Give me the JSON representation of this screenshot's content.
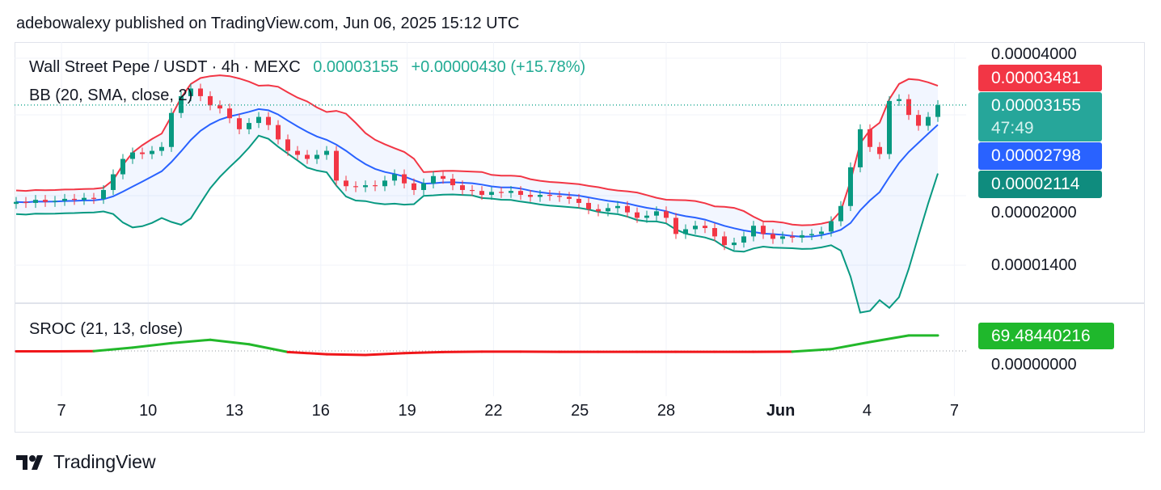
{
  "header": {
    "published": "adebowalexy published on TradingView.com, Jun 06, 2025 15:12 UTC"
  },
  "legend": {
    "symbol": "Wall Street Pepe / USDT · 4h · MEXC",
    "price": "0.00003155",
    "change": "+0.00000430 (+15.78%)",
    "bb": "BB (20, SMA, close, 2)",
    "sroc": "SROC (21, 13, close)"
  },
  "price_axis": {
    "top": "0.00004000",
    "mid": "0.00002000",
    "low": "0.00001400",
    "sroc_zero": "0.00000000"
  },
  "labels": {
    "bb_upper": "0.00003481",
    "last": "0.00003155",
    "countdown": "47:49",
    "bb_basis": "0.00002798",
    "bb_lower": "0.00002114",
    "sroc": "69.48440216"
  },
  "colors": {
    "up": "#089981",
    "down": "#f23645",
    "basis": "#2962ff",
    "sroc_up": "#22b82a",
    "sroc_down": "#f0161a"
  },
  "brand": "TradingView",
  "chart_data": {
    "type": "candlestick",
    "scale": "log",
    "ylim": [
      9.5e-06,
      4.25e-05
    ],
    "bb_period": 20,
    "time_ticks": [
      {
        "label": "7",
        "bar": 4.67
      },
      {
        "label": "10",
        "bar": 13.6
      },
      {
        "label": "13",
        "bar": 22.5
      },
      {
        "label": "16",
        "bar": 31.4
      },
      {
        "label": "19",
        "bar": 40.3
      },
      {
        "label": "22",
        "bar": 49.2
      },
      {
        "label": "25",
        "bar": 58.1
      },
      {
        "label": "28",
        "bar": 67
      },
      {
        "label": "Jun",
        "bar": 78.8
      },
      {
        "label": "4",
        "bar": 87.7
      },
      {
        "label": "7",
        "bar": 96.7
      }
    ],
    "close": [
      1.93e-05,
      1.92e-05,
      1.95e-05,
      1.93e-05,
      1.94e-05,
      1.96e-05,
      1.95e-05,
      1.97e-05,
      1.96e-05,
      2.05e-05,
      2.22e-05,
      2.4e-05,
      2.48e-05,
      2.46e-05,
      2.5e-05,
      2.55e-05,
      3.03e-05,
      3.3e-05,
      3.43e-05,
      3.3e-05,
      3.15e-05,
      3.1e-05,
      2.95e-05,
      2.79e-05,
      2.88e-05,
      2.97e-05,
      2.85e-05,
      2.65e-05,
      2.5e-05,
      2.45e-05,
      2.4e-05,
      2.45e-05,
      2.5e-05,
      2.15e-05,
      2.09e-05,
      2.08e-05,
      2.1e-05,
      2.09e-05,
      2.15e-05,
      2.22e-05,
      2.12e-05,
      2.05e-05,
      2.12e-05,
      2.2e-05,
      2.17e-05,
      2.1e-05,
      2.05e-05,
      2.04e-05,
      2e-05,
      2.03e-05,
      2.02e-05,
      2.04e-05,
      2e-05,
      1.98e-05,
      2e-05,
      1.99e-05,
      1.98e-05,
      1.96e-05,
      1.92e-05,
      1.86e-05,
      1.84e-05,
      1.87e-05,
      1.89e-05,
      1.83e-05,
      1.78e-05,
      1.8e-05,
      1.84e-05,
      1.78e-05,
      1.64e-05,
      1.68e-05,
      1.71e-05,
      1.69e-05,
      1.62e-05,
      1.55e-05,
      1.57e-05,
      1.62e-05,
      1.71e-05,
      1.64e-05,
      1.6e-05,
      1.62e-05,
      1.61e-05,
      1.63e-05,
      1.64e-05,
      1.66e-05,
      1.75e-05,
      1.89e-05,
      2.3e-05,
      2.79e-05,
      2.55e-05,
      2.46e-05,
      3.22e-05,
      3.25e-05,
      3e-05,
      2.84e-05,
      2.97e-05,
      3.155e-05
    ],
    "sroc": {
      "bars": [
        0,
        4,
        8,
        12,
        16,
        20,
        24,
        28,
        32,
        36,
        40,
        44,
        48,
        52,
        56,
        60,
        64,
        68,
        72,
        76,
        80,
        84,
        88,
        92,
        95
      ],
      "values": [
        -2,
        -2,
        -1,
        15,
        35,
        50,
        30,
        -5,
        -15,
        -18,
        -10,
        -5,
        -3,
        -3,
        -4,
        -4,
        -4,
        -4,
        -4,
        -4,
        -3,
        8,
        40,
        69.5,
        69.48
      ],
      "zero": 0
    }
  }
}
